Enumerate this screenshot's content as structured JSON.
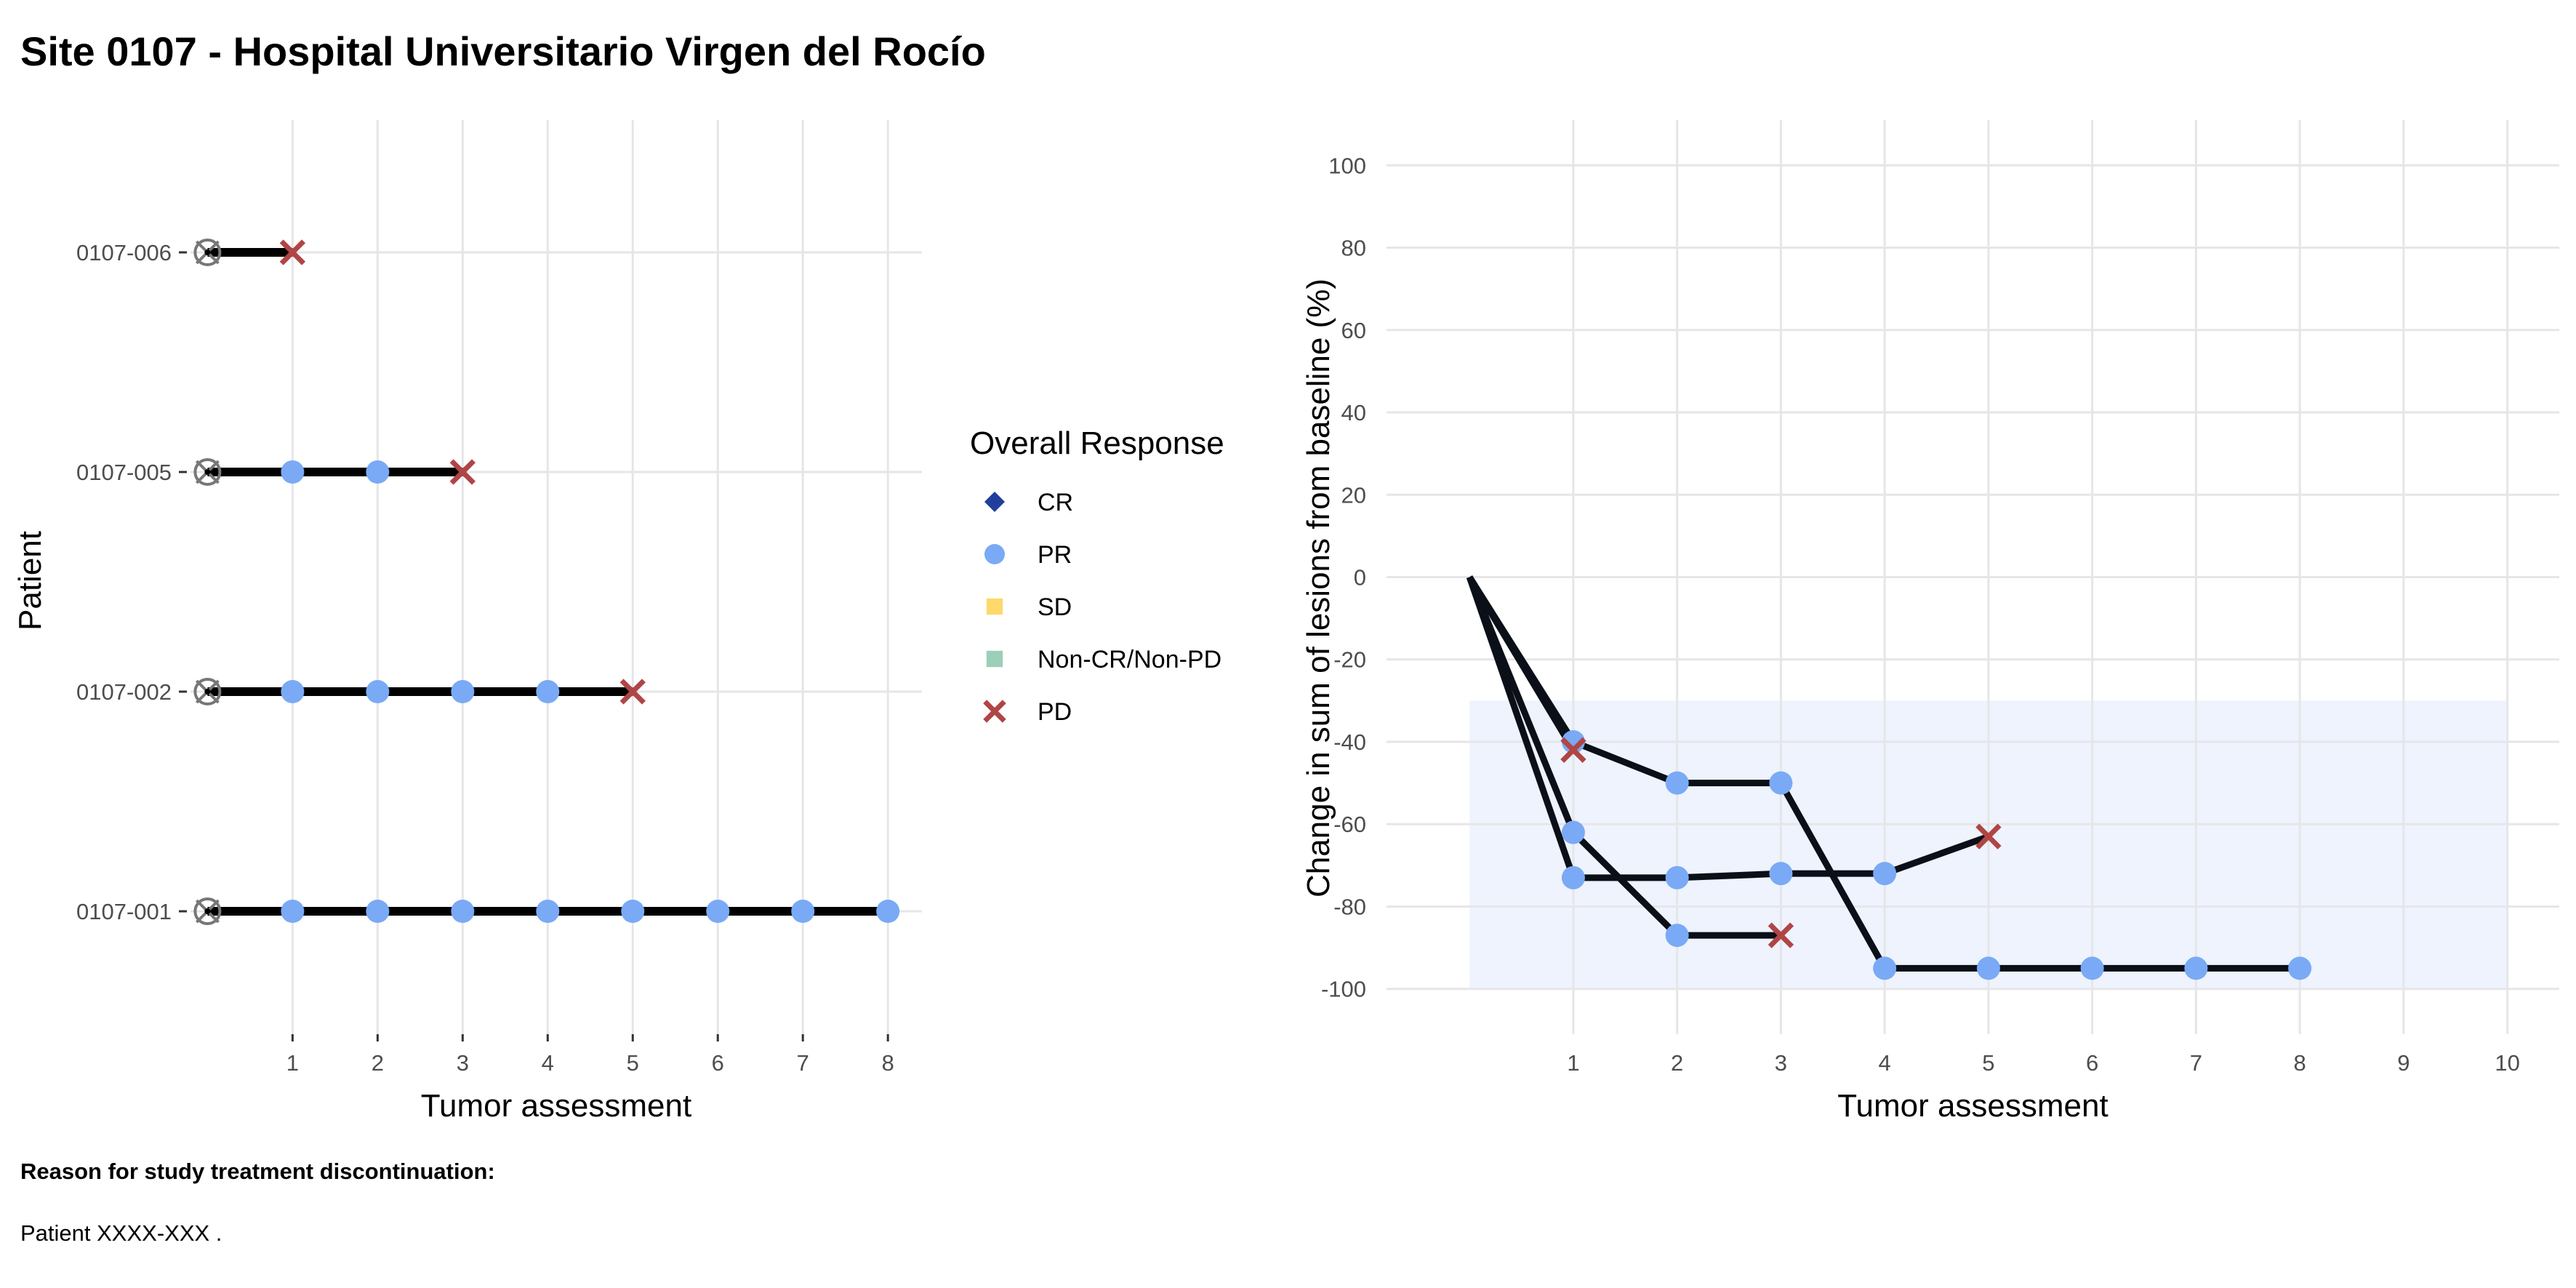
{
  "title": "Site 0107 - Hospital Universitario Virgen del Rocío",
  "footer": {
    "reason_label": "Reason for study treatment discontinuation:",
    "reason_text": "Patient XXXX-XXX ."
  },
  "legend": {
    "title": "Overall Response",
    "items": [
      {
        "label": "CR",
        "shape": "diamond",
        "color": "#1f3f9a"
      },
      {
        "label": "PR",
        "shape": "circle",
        "color": "#7aaaf5"
      },
      {
        "label": "SD",
        "shape": "square",
        "color": "#fcd96a"
      },
      {
        "label": "Non-CR/Non-PD",
        "shape": "square",
        "color": "#9ccfb7"
      },
      {
        "label": "PD",
        "shape": "cross",
        "color": "#b04545"
      }
    ]
  },
  "chart_data": [
    {
      "type": "line",
      "subtype": "swimmer",
      "xlabel": "Tumor assessment",
      "ylabel": "Patient",
      "xlim": [
        -0.2,
        8.4
      ],
      "x_ticks": [
        1,
        2,
        3,
        4,
        5,
        6,
        7,
        8
      ],
      "categories": [
        "0107-001",
        "0107-002",
        "0107-005",
        "0107-006"
      ],
      "baseline_marker": "open-circle-with-x",
      "grid": true,
      "patients": [
        {
          "id": "0107-006",
          "responses": [
            "PD"
          ]
        },
        {
          "id": "0107-005",
          "responses": [
            "PR",
            "PR",
            "PD"
          ]
        },
        {
          "id": "0107-002",
          "responses": [
            "PR",
            "PR",
            "PR",
            "PR",
            "PD"
          ]
        },
        {
          "id": "0107-001",
          "responses": [
            "PR",
            "PR",
            "PR",
            "PR",
            "PR",
            "PR",
            "PR",
            "PR"
          ]
        }
      ]
    },
    {
      "type": "line",
      "subtype": "spider",
      "xlabel": "Tumor assessment",
      "ylabel": "Change in sum of lesions from baseline (%)",
      "xlim": [
        -0.8,
        10.5
      ],
      "ylim": [
        -111,
        111
      ],
      "x_ticks": [
        1,
        2,
        3,
        4,
        5,
        6,
        7,
        8,
        9,
        10
      ],
      "y_ticks": [
        100,
        80,
        60,
        40,
        20,
        0,
        -20,
        -40,
        -60,
        -80,
        -100
      ],
      "shaded_band": {
        "x": [
          0,
          10
        ],
        "y": [
          -100,
          -30
        ],
        "color": "#eef3fd"
      },
      "grid": true,
      "series": [
        {
          "patient": "0107-001",
          "x": [
            0,
            1,
            2,
            3,
            4,
            5,
            6,
            7,
            8
          ],
          "y": [
            0,
            -40,
            -50,
            -50,
            -95,
            -95,
            -95,
            -95,
            -95
          ],
          "responses": [
            "",
            "PR",
            "PR",
            "PR",
            "PR",
            "PR",
            "PR",
            "PR",
            "PR"
          ]
        },
        {
          "patient": "0107-002",
          "x": [
            0,
            1,
            2,
            3,
            4,
            5
          ],
          "y": [
            0,
            -73,
            -73,
            -72,
            -72,
            -63
          ],
          "responses": [
            "",
            "PR",
            "PR",
            "PR",
            "PR",
            "PD"
          ]
        },
        {
          "patient": "0107-005",
          "x": [
            0,
            1,
            2,
            3
          ],
          "y": [
            0,
            -62,
            -87,
            -87
          ],
          "responses": [
            "",
            "PR",
            "PR",
            "PD"
          ]
        },
        {
          "patient": "0107-006",
          "x": [
            0,
            1
          ],
          "y": [
            0,
            -42
          ],
          "responses": [
            "",
            "PD"
          ]
        }
      ]
    }
  ]
}
